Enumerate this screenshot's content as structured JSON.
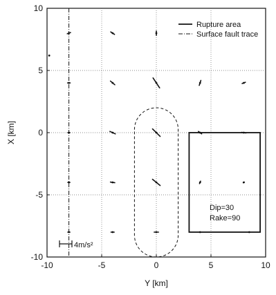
{
  "chart_data": {
    "type": "scatter",
    "xlabel": "Y [km]",
    "ylabel": "X [km]",
    "xlim": [
      -10,
      10
    ],
    "ylim": [
      -10,
      10
    ],
    "xticks": [
      "-10",
      "-5",
      "0",
      "5",
      "10"
    ],
    "yticks": [
      "10",
      "5",
      "0",
      "-5",
      "-10"
    ],
    "grid": true,
    "legend": {
      "placement": "top-right",
      "entries": [
        {
          "label": "Rupture area",
          "style": "solid"
        },
        {
          "label": "Surface fault trace",
          "style": "dashdot"
        }
      ]
    },
    "annotations": {
      "dip": "Dip=30",
      "rake": "Rake=90",
      "scale_bar": "4m/s²"
    },
    "rupture_area": {
      "y_min": 3,
      "y_max": 9.5,
      "x_min": -8,
      "x_max": 0
    },
    "surface_fault_trace_y": -8,
    "stadium": {
      "y_center": 0,
      "x_top": 2,
      "x_bottom": -10,
      "half_width": 2
    },
    "stations": [
      {
        "y": -8,
        "x": 8,
        "dx": 0.3,
        "dy": 0.1
      },
      {
        "y": -4,
        "x": 8,
        "dx": 0.35,
        "dy": -0.2
      },
      {
        "y": 0,
        "x": 8,
        "dx": 0.0,
        "dy": 0.35
      },
      {
        "y": -8,
        "x": 4,
        "dx": 0.25,
        "dy": 0.0
      },
      {
        "y": -4,
        "x": 4,
        "dx": 0.4,
        "dy": -0.3
      },
      {
        "y": 0,
        "x": 4,
        "dx": 0.6,
        "dy": -0.8
      },
      {
        "y": 4,
        "x": 4,
        "dx": 0.15,
        "dy": 0.4
      },
      {
        "y": 8,
        "x": 4,
        "dx": 0.3,
        "dy": 0.1
      },
      {
        "y": -8,
        "x": 0,
        "dx": 0.2,
        "dy": 0.0
      },
      {
        "y": -4,
        "x": 0,
        "dx": 0.5,
        "dy": -0.2
      },
      {
        "y": 0,
        "x": 0,
        "dx": 0.7,
        "dy": -0.6
      },
      {
        "y": 4,
        "x": 0,
        "dx": 0.3,
        "dy": -0.2
      },
      {
        "y": 8,
        "x": 0,
        "dx": 0.4,
        "dy": -0.05
      },
      {
        "y": -8,
        "x": -4,
        "dx": 0.2,
        "dy": 0.0
      },
      {
        "y": -4,
        "x": -4,
        "dx": 0.4,
        "dy": -0.05
      },
      {
        "y": 0,
        "x": -4,
        "dx": 0.7,
        "dy": -0.5
      },
      {
        "y": 4,
        "x": -4,
        "dx": 0.1,
        "dy": 0.2
      },
      {
        "y": 8,
        "x": -4,
        "dx": 0.1,
        "dy": 0.05
      },
      {
        "y": -8,
        "x": -8,
        "dx": 0.2,
        "dy": 0.0
      },
      {
        "y": -4,
        "x": -8,
        "dx": 0.3,
        "dy": 0.0
      },
      {
        "y": 0,
        "x": -8,
        "dx": 0.4,
        "dy": 0.0
      },
      {
        "y": 4,
        "x": -8,
        "dx": 0.1,
        "dy": 0.0
      },
      {
        "y": 8.5,
        "x": -8,
        "dx": 0.1,
        "dy": 0.0
      },
      {
        "y": -9.8,
        "x": 6.2,
        "dx": 0.05,
        "dy": 0.0
      }
    ]
  }
}
